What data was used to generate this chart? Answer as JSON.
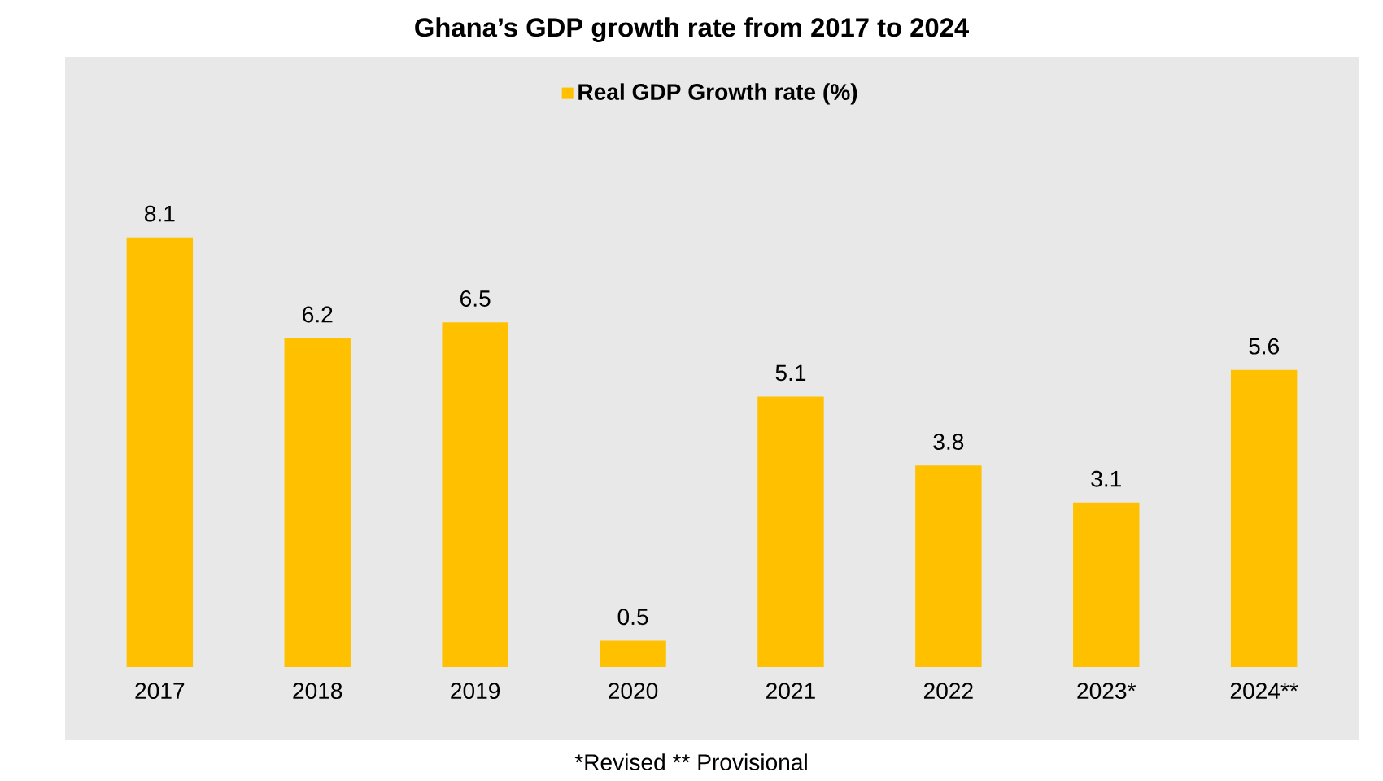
{
  "chart_data": {
    "type": "bar",
    "title": "Ghana’s GDP growth rate from 2017 to 2024",
    "categories": [
      "2017",
      "2018",
      "2019",
      "2020",
      "2021",
      "2022",
      "2023*",
      "2024**"
    ],
    "series": [
      {
        "name": "Real GDP Growth rate (%)",
        "color": "#ffc000",
        "values": [
          8.1,
          6.2,
          6.5,
          0.5,
          5.1,
          3.8,
          3.1,
          5.6
        ]
      }
    ],
    "data_labels": true,
    "legend": "top",
    "annotations": [
      "*Revised ** Provisional"
    ]
  }
}
